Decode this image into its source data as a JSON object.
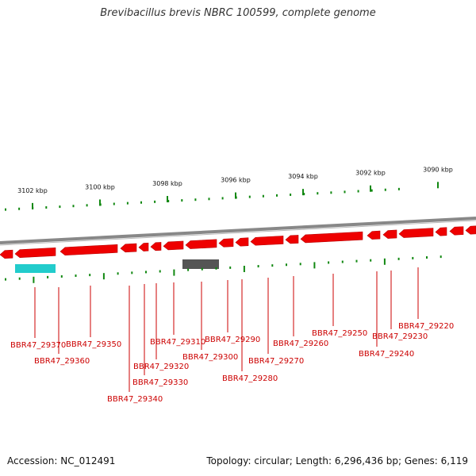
{
  "title": "Brevibacillus brevis NBRC 100599, complete genome",
  "footer": {
    "accession": "Accession: NC_012491",
    "summary": "Topology: circular; Length: 6,296,436 bp; Genes: 6,119"
  },
  "colors": {
    "gene": "#ee0000",
    "rrna": "#22cccc",
    "pseudo": "#555555",
    "backbone": "#888888",
    "tick": "#118811",
    "label": "#cc0000"
  },
  "kbp_labels": [
    "3102 kbp",
    "3100 kbp",
    "3098 kbp",
    "3096 kbp",
    "3094 kbp",
    "3092 kbp",
    "3090 kbp"
  ],
  "gene_labels": [
    "BBR47_29370",
    "BBR47_29360",
    "BBR47_29350",
    "BBR47_29340",
    "BBR47_29330",
    "BBR47_29320",
    "BBR47_29310",
    "BBR47_29300",
    "BBR47_29290",
    "BBR47_29280",
    "BBR47_29270",
    "BBR47_29260",
    "BBR47_29250",
    "BBR47_29240",
    "BBR47_29230",
    "BBR47_29220"
  ]
}
